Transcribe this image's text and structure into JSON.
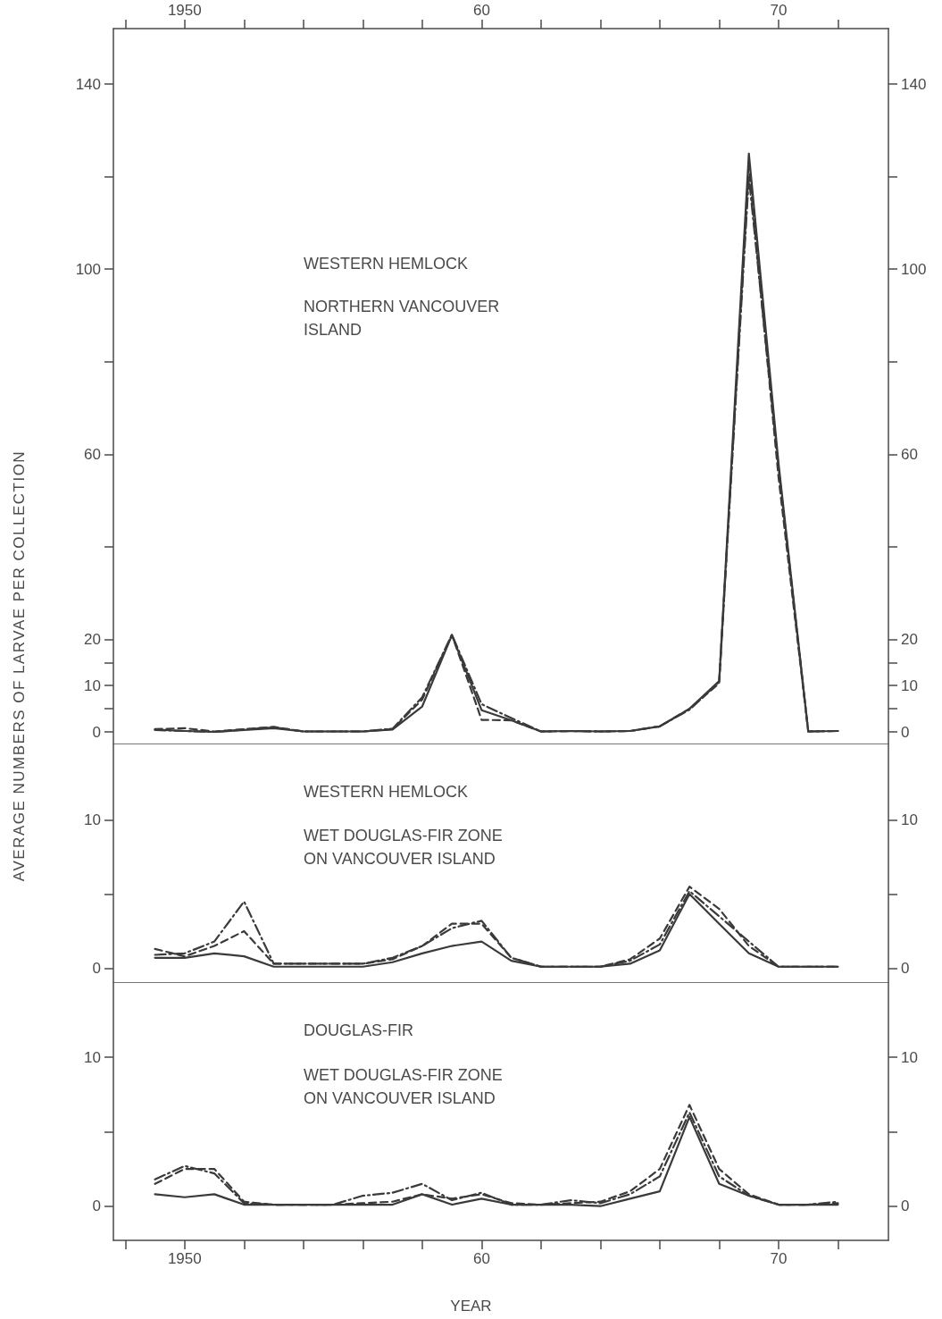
{
  "chart_data": [
    {
      "type": "line",
      "annotations": [
        "WESTERN HEMLOCK",
        "NORTHERN VANCOUVER ISLAND"
      ],
      "xlim": [
        1947.6,
        1973.7
      ],
      "x2lim": [
        1947.6,
        1973.7
      ],
      "x2ticks": [
        {
          "value": 1948,
          "label": null
        },
        1950,
        {
          "value": 1952,
          "label": null
        },
        {
          "value": 1954,
          "label": null
        },
        {
          "value": 1956,
          "label": null
        },
        {
          "value": 1958,
          "label": null
        },
        {
          "value": 1960,
          "label": "60"
        },
        {
          "value": 1962,
          "label": null
        },
        {
          "value": 1964,
          "label": null
        },
        {
          "value": 1966,
          "label": null
        },
        {
          "value": 1968,
          "label": null
        },
        {
          "value": 1970,
          "label": "70"
        },
        {
          "value": 1972,
          "label": null
        }
      ],
      "ylim": [
        -2.7,
        152
      ],
      "yticks": [
        0,
        {
          "value": 5,
          "label": null
        },
        10,
        {
          "value": 15,
          "label": null
        },
        20,
        {
          "value": 40,
          "label": null
        },
        60,
        {
          "value": 80,
          "label": null
        },
        100,
        {
          "value": 120,
          "label": null
        },
        140
      ],
      "y2lim": [
        -2.7,
        152
      ],
      "y2ticks": [
        0,
        {
          "value": 5,
          "label": null
        },
        10,
        {
          "value": 15,
          "label": null
        },
        20,
        {
          "value": 40,
          "label": null
        },
        60,
        {
          "value": 80,
          "label": null
        },
        100,
        {
          "value": 120,
          "label": null
        },
        140
      ],
      "ylabel": "AVERAGE NUMBERS OF LARVAE PER COLLECTION",
      "x": [
        1949,
        1950,
        1951,
        1952,
        1953,
        1954,
        1955,
        1956,
        1957,
        1958,
        1959,
        1960,
        1961,
        1962,
        1963,
        1964,
        1965,
        1966,
        1967,
        1968,
        1969,
        1970,
        1971,
        1972
      ],
      "grid": false,
      "marker": "none",
      "series": [
        {
          "color": "#3a3a3a",
          "line_style": "solid",
          "values": [
            0.5,
            0.2,
            0,
            0.4,
            0.8,
            0.1,
            0.1,
            0.1,
            0.5,
            5.5,
            20.9,
            4.7,
            2.5,
            0.1,
            0.2,
            0.1,
            0.2,
            1.2,
            5,
            11,
            125,
            58,
            0.1,
            0.2
          ]
        },
        {
          "color": "#3a3a3a",
          "line_style": "dashed",
          "values": [
            0.6,
            0.8,
            0.1,
            0.6,
            1.1,
            0.1,
            0.1,
            0.1,
            0.6,
            7,
            21,
            2.6,
            2.5,
            0.1,
            0.2,
            0.1,
            0.2,
            1.2,
            5,
            10.5,
            122,
            55,
            0.1,
            0.2
          ]
        },
        {
          "color": "#3a3a3a",
          "line_style": "dashdot",
          "values": [
            0.4,
            0.2,
            0,
            0.5,
            1,
            0.1,
            0.1,
            0.1,
            0.7,
            7.5,
            21,
            6,
            3,
            0.1,
            0.2,
            0.1,
            0.2,
            1.2,
            4.8,
            10.8,
            120,
            57,
            0.1,
            0.2
          ]
        }
      ]
    },
    {
      "type": "line",
      "annotations": [
        "WESTERN HEMLOCK",
        "WET DOUGLAS-FIR ZONE ON VANCOUVER ISLAND"
      ],
      "tick_labels": "y",
      "xlim": [
        1947.6,
        1973.7
      ],
      "ylim": [
        -1,
        15.1
      ],
      "yticks": [
        0,
        {
          "value": 5,
          "label": null
        },
        10
      ],
      "y2lim": [
        -1,
        15.1
      ],
      "y2ticks": [
        0,
        {
          "value": 5,
          "label": null
        },
        10
      ],
      "x": [
        1949,
        1950,
        1951,
        1952,
        1953,
        1954,
        1955,
        1956,
        1957,
        1958,
        1959,
        1960,
        1961,
        1962,
        1963,
        1964,
        1965,
        1966,
        1967,
        1968,
        1969,
        1970,
        1971,
        1972
      ],
      "grid": false,
      "marker": "none",
      "series": [
        {
          "color": "#3a3a3a",
          "line_style": "solid",
          "values": [
            0.7,
            0.7,
            1,
            0.8,
            0.1,
            0.1,
            0.1,
            0.1,
            0.4,
            1,
            1.5,
            1.8,
            0.5,
            0.1,
            0.1,
            0.1,
            0.3,
            1.2,
            5,
            3,
            1,
            0.1,
            0.1,
            0.1
          ]
        },
        {
          "color": "#3a3a3a",
          "line_style": "dashed",
          "values": [
            1.3,
            0.8,
            1.5,
            2.5,
            0.3,
            0.3,
            0.3,
            0.3,
            0.6,
            1.5,
            3,
            3,
            0.7,
            0.1,
            0.1,
            0.1,
            0.6,
            2,
            5.5,
            4,
            1.5,
            0.1,
            0.1,
            0.1
          ]
        },
        {
          "color": "#3a3a3a",
          "line_style": "dashdot",
          "values": [
            0.9,
            1,
            1.8,
            4.5,
            0.3,
            0.3,
            0.3,
            0.3,
            0.7,
            1.5,
            2.7,
            3.2,
            0.7,
            0.1,
            0.1,
            0.1,
            0.5,
            1.6,
            5.2,
            3.5,
            1.8,
            0.1,
            0.1,
            0.1
          ]
        }
      ]
    },
    {
      "type": "line",
      "xlabel": "YEAR",
      "annotations": [
        "DOUGLAS-FIR",
        "WET DOUGLAS-FIR ZONE ON VANCOUVER ISLAND"
      ],
      "xlim": [
        1947.6,
        1973.7
      ],
      "xticks": [
        {
          "value": 1948,
          "label": null
        },
        1950,
        {
          "value": 1952,
          "label": null
        },
        {
          "value": 1954,
          "label": null
        },
        {
          "value": 1956,
          "label": null
        },
        {
          "value": 1958,
          "label": null
        },
        {
          "value": 1960,
          "label": "60"
        },
        {
          "value": 1962,
          "label": null
        },
        {
          "value": 1964,
          "label": null
        },
        {
          "value": 1966,
          "label": null
        },
        {
          "value": 1968,
          "label": null
        },
        {
          "value": 1970,
          "label": "70"
        },
        {
          "value": 1972,
          "label": null
        }
      ],
      "ylim": [
        -2.3,
        15
      ],
      "yticks": [
        0,
        {
          "value": 5,
          "label": null
        },
        10
      ],
      "y2lim": [
        -2.3,
        15
      ],
      "y2ticks": [
        0,
        {
          "value": 5,
          "label": null
        },
        10
      ],
      "x": [
        1949,
        1950,
        1951,
        1952,
        1953,
        1954,
        1955,
        1956,
        1957,
        1958,
        1959,
        1960,
        1961,
        1962,
        1963,
        1964,
        1965,
        1966,
        1967,
        1968,
        1969,
        1970,
        1971,
        1972
      ],
      "grid": false,
      "marker": "none",
      "series": [
        {
          "color": "#3a3a3a",
          "line_style": "solid",
          "values": [
            0.8,
            0.6,
            0.8,
            0.1,
            0.1,
            0.1,
            0.1,
            0.1,
            0.1,
            0.8,
            0.1,
            0.5,
            0.1,
            0.1,
            0.1,
            0,
            0.5,
            1,
            6,
            1.5,
            0.7,
            0.1,
            0.1,
            0.1
          ]
        },
        {
          "color": "#3a3a3a",
          "line_style": "dashed",
          "values": [
            1.5,
            2.5,
            2.5,
            0.3,
            0.1,
            0.1,
            0.1,
            0.2,
            0.3,
            0.8,
            0.5,
            0.8,
            0.2,
            0.1,
            0.2,
            0.3,
            1,
            2.5,
            6.8,
            2.5,
            0.8,
            0.1,
            0.1,
            0.2
          ]
        },
        {
          "color": "#3a3a3a",
          "line_style": "dashdot",
          "values": [
            1.8,
            2.7,
            2.2,
            0.2,
            0.1,
            0.1,
            0.1,
            0.7,
            0.9,
            1.5,
            0.4,
            0.9,
            0.1,
            0.1,
            0.4,
            0.2,
            0.8,
            2,
            6.3,
            2,
            0.7,
            0.1,
            0.1,
            0.3
          ]
        }
      ]
    }
  ]
}
